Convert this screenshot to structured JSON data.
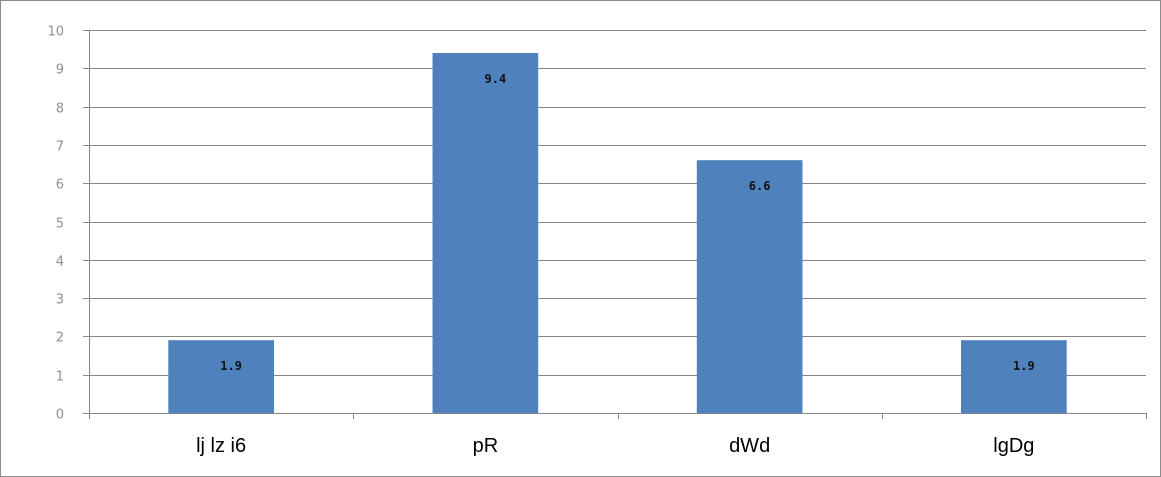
{
  "chart_data": {
    "type": "bar",
    "categories": [
      "lj lz i6",
      "pR",
      "dWd",
      "lgDg"
    ],
    "values": [
      1.9,
      9.4,
      6.6,
      1.9
    ],
    "data_labels": [
      "1.9",
      "9.4",
      "6.6",
      "1.9"
    ],
    "ylim": [
      0,
      10
    ],
    "y_ticks": [
      "0",
      "1",
      "2",
      "3",
      "4",
      "5",
      "6",
      "7",
      "8",
      "9",
      "10"
    ],
    "bar_color": "#4f81bd",
    "gridline_color": "#868686",
    "grid": true,
    "legend": "none"
  }
}
